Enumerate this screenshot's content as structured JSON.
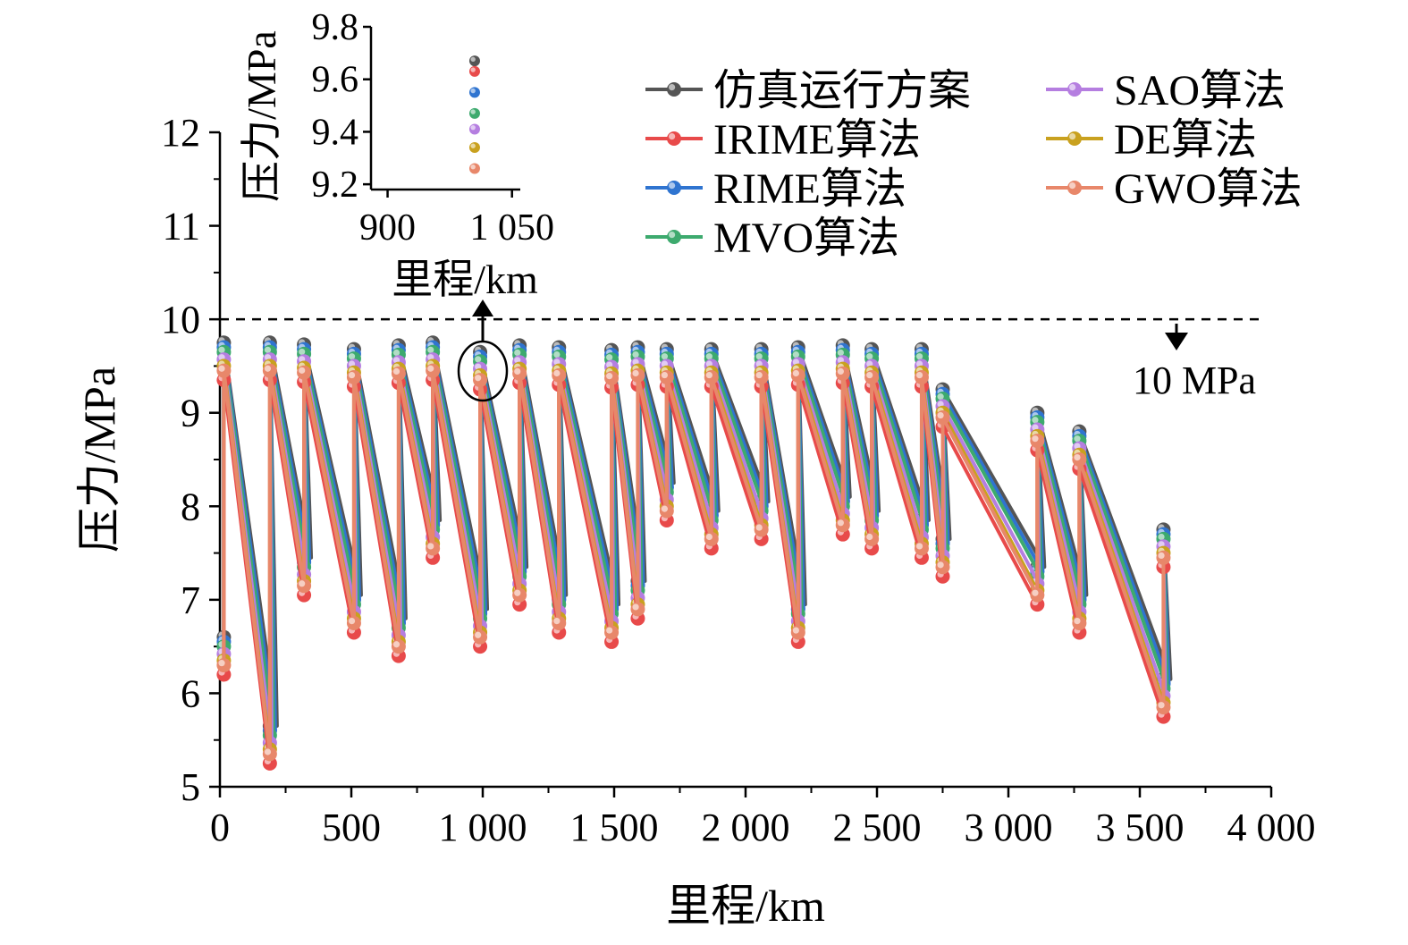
{
  "chart_data": {
    "type": "line",
    "xlabel": "里程/km",
    "ylabel": "压力/MPa",
    "xlim": [
      0,
      4000
    ],
    "ylim": [
      5,
      12
    ],
    "xticks": [
      0,
      500,
      1000,
      1500,
      2000,
      2500,
      3000,
      3500,
      4000
    ],
    "xtick_labels": [
      "0",
      "500",
      "1 000",
      "1 500",
      "2 000",
      "2 500",
      "3 000",
      "3 500",
      "4 000"
    ],
    "yticks": [
      5,
      6,
      7,
      8,
      9,
      10,
      11,
      12
    ],
    "ytick_labels": [
      "5",
      "6",
      "7",
      "8",
      "9",
      "10",
      "11",
      "12"
    ],
    "grid": false,
    "legend_position": "top-right",
    "reference_line": {
      "y": 10,
      "label": "10 MPa"
    },
    "stations_x": [
      15,
      190,
      320,
      510,
      680,
      810,
      990,
      1140,
      1290,
      1490,
      1590,
      1700,
      1870,
      2060,
      2200,
      2370,
      2480,
      2670,
      2750,
      3110,
      3270,
      3590
    ],
    "base_series": {
      "name": "GWO算法",
      "outlet": [
        9.45,
        9.45,
        9.43,
        9.38,
        9.42,
        9.45,
        9.35,
        9.42,
        9.4,
        9.37,
        9.4,
        9.38,
        9.38,
        9.38,
        9.4,
        9.42,
        9.38,
        9.38,
        8.95,
        8.7,
        8.5,
        7.45
      ],
      "inlet": [
        6.3,
        5.35,
        7.15,
        6.75,
        6.5,
        7.55,
        6.6,
        7.05,
        6.75,
        6.65,
        6.9,
        7.95,
        7.65,
        7.75,
        6.65,
        7.8,
        7.65,
        7.55,
        7.35,
        7.05,
        6.75,
        5.85
      ]
    },
    "series": [
      {
        "name": "仿真运行方案",
        "color": "#555555",
        "offset_outlet": 0.3,
        "offset_inlet": 0.3
      },
      {
        "name": "IRIME算法",
        "color": "#e84a4a",
        "offset_outlet": -0.1,
        "offset_inlet": -0.1
      },
      {
        "name": "RIME算法",
        "color": "#2f74d0",
        "offset_outlet": 0.25,
        "offset_inlet": 0.25
      },
      {
        "name": "MVO算法",
        "color": "#3daa6e",
        "offset_outlet": 0.2,
        "offset_inlet": 0.2
      },
      {
        "name": "SAO算法",
        "color": "#b57ee0",
        "offset_outlet": 0.12,
        "offset_inlet": 0.12
      },
      {
        "name": "DE算法",
        "color": "#c9a11f",
        "offset_outlet": 0.05,
        "offset_inlet": 0.05
      },
      {
        "name": "GWO算法",
        "color": "#e8876a",
        "offset_outlet": 0,
        "offset_inlet": 0
      }
    ],
    "inset": {
      "xlabel": "里程/km",
      "ylabel": "压力/MPa",
      "xlim": [
        880,
        1060
      ],
      "ylim": [
        9.18,
        9.8
      ],
      "xticks": [
        900,
        1050
      ],
      "xtick_labels": [
        "900",
        "1 050"
      ],
      "yticks": [
        9.2,
        9.4,
        9.6,
        9.8
      ],
      "ytick_labels": [
        "9.2",
        "9.4",
        "9.6",
        "9.8"
      ],
      "x": 1005,
      "values": [
        9.67,
        9.63,
        9.55,
        9.47,
        9.41,
        9.34,
        9.26
      ]
    }
  }
}
